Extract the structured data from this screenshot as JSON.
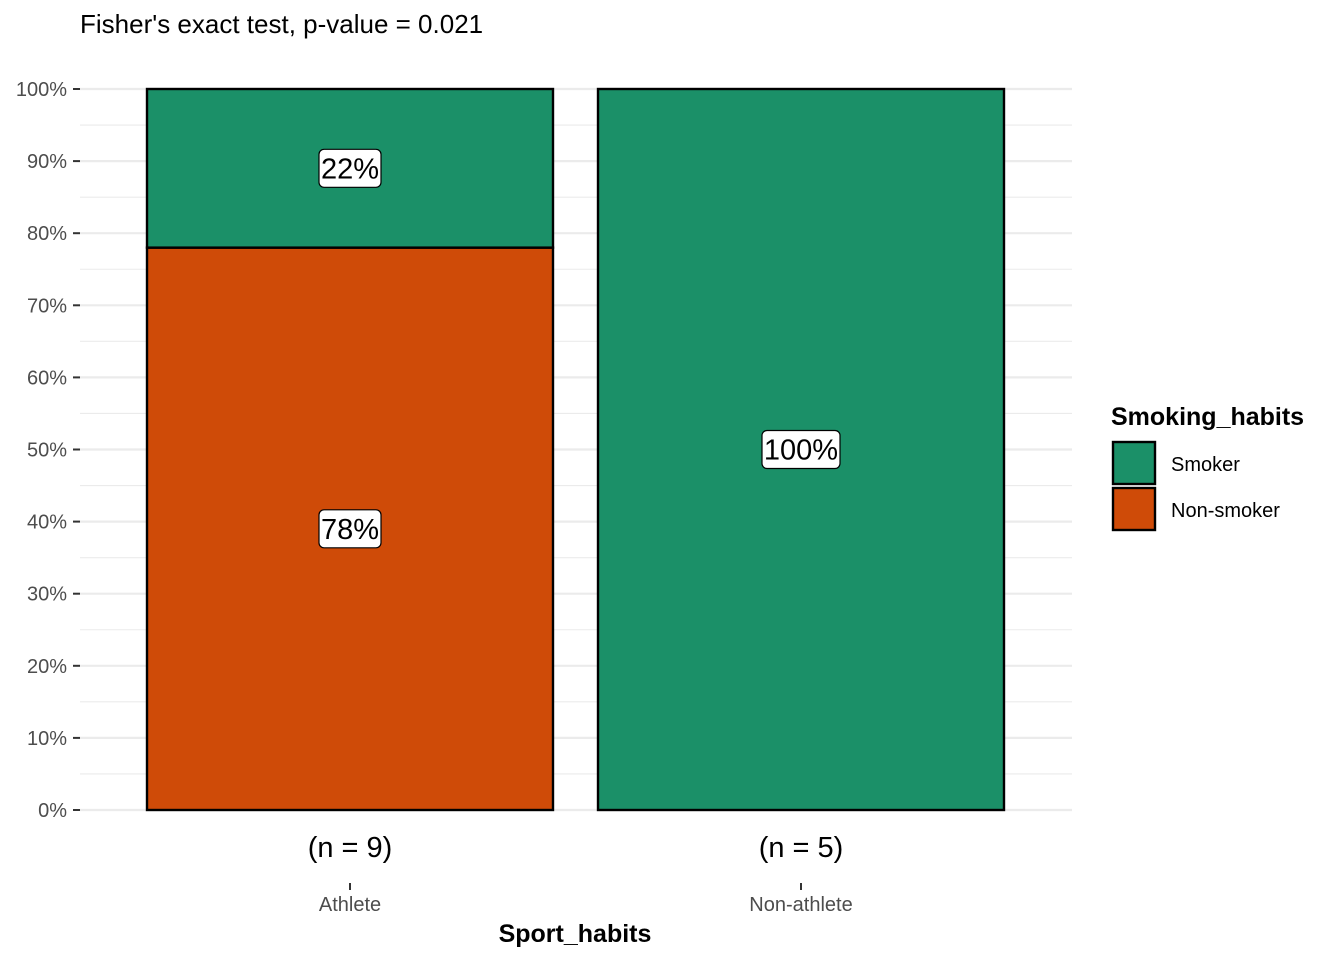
{
  "chart_data": {
    "type": "bar",
    "stacked": true,
    "percent": true,
    "title": "Fisher's exact test, p-value = 0.021",
    "xlabel": "Sport_habits",
    "ylabel": "",
    "categories": [
      "Athlete",
      "Non-athlete"
    ],
    "counts": [
      "(n = 9)",
      "(n = 5)"
    ],
    "series": [
      {
        "name": "Smoker",
        "color": "#1b9068",
        "values": [
          22,
          100
        ],
        "labels": [
          "22%",
          "100%"
        ]
      },
      {
        "name": "Non-smoker",
        "color": "#cf4b08",
        "values": [
          78,
          0
        ],
        "labels": [
          "78%",
          ""
        ]
      }
    ],
    "ylim": [
      0,
      100
    ],
    "yticks": [
      0,
      10,
      20,
      30,
      40,
      50,
      60,
      70,
      80,
      90,
      100
    ],
    "ytick_labels": [
      "0%",
      "10%",
      "20%",
      "30%",
      "40%",
      "50%",
      "60%",
      "70%",
      "80%",
      "90%",
      "100%"
    ],
    "grid": true,
    "legend": {
      "title": "Smoking_habits",
      "position": "right",
      "items": [
        "Smoker",
        "Non-smoker"
      ]
    }
  }
}
